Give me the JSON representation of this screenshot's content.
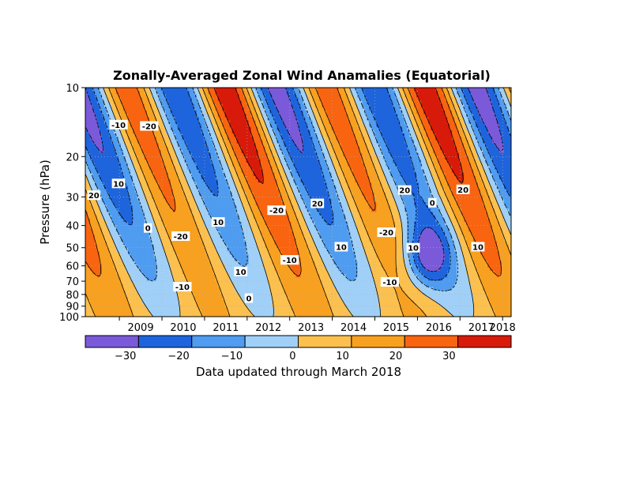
{
  "chart_data": {
    "type": "heatmap",
    "title": "Zonally-Averaged Zonal Wind Anamalies (Equatorial)",
    "ylabel": "Pressure (hPa)",
    "footer": "Data updated through March 2018",
    "y_scale": "log-reversed",
    "ylim": [
      100,
      10
    ],
    "y_ticks": [
      "10",
      "20",
      "30",
      "40",
      "50",
      "60",
      "70",
      "80",
      "90",
      "100"
    ],
    "y_tick_values": [
      10,
      20,
      30,
      40,
      50,
      60,
      70,
      80,
      90,
      100
    ],
    "xlim": [
      2008.2,
      2018.2
    ],
    "x_ticks": [
      "2009",
      "2010",
      "2011",
      "2012",
      "2013",
      "2014",
      "2015",
      "2016",
      "2017",
      "2018"
    ],
    "x_tick_values": [
      2009,
      2010,
      2011,
      2012,
      2013,
      2014,
      2015,
      2016,
      2017,
      2018
    ],
    "grid": true,
    "colorbar": {
      "bounds": [
        -40,
        -30,
        -20,
        -10,
        0,
        10,
        20,
        30,
        40
      ],
      "tick_labels": [
        "-30",
        "-20",
        "-10",
        "0",
        "10",
        "20",
        "30"
      ],
      "tick_values": [
        -30,
        -20,
        -10,
        0,
        10,
        20,
        30
      ],
      "colors": [
        "#7a5ad8",
        "#1e64dc",
        "#4f9cf0",
        "#a0d0f8",
        "#fcc04e",
        "#f8a020",
        "#f86410",
        "#d81a0a"
      ]
    },
    "contour_labels": [
      {
        "text": "-10",
        "t": 2008.98,
        "p": 14.5
      },
      {
        "text": "-20",
        "t": 2009.7,
        "p": 14.7
      },
      {
        "text": "20",
        "t": 2008.4,
        "p": 29.5
      },
      {
        "text": "10",
        "t": 2008.98,
        "p": 26.2
      },
      {
        "text": "0",
        "t": 2009.67,
        "p": 41.0
      },
      {
        "text": "-20",
        "t": 2010.44,
        "p": 44.5
      },
      {
        "text": "-10",
        "t": 2010.48,
        "p": 74.0
      },
      {
        "text": "10",
        "t": 2011.32,
        "p": 38.6
      },
      {
        "text": "10",
        "t": 2011.85,
        "p": 63.5
      },
      {
        "text": "0",
        "t": 2012.04,
        "p": 83.0
      },
      {
        "text": "-20",
        "t": 2012.69,
        "p": 34.3
      },
      {
        "text": "-10",
        "t": 2013.0,
        "p": 56.5
      },
      {
        "text": "20",
        "t": 2013.65,
        "p": 32.0
      },
      {
        "text": "10",
        "t": 2014.21,
        "p": 49.5
      },
      {
        "text": "-20",
        "t": 2015.27,
        "p": 42.8
      },
      {
        "text": "-10",
        "t": 2015.35,
        "p": 70.5
      },
      {
        "text": "20",
        "t": 2015.7,
        "p": 28.0
      },
      {
        "text": "10",
        "t": 2015.9,
        "p": 50.0
      },
      {
        "text": "0",
        "t": 2016.35,
        "p": 31.8
      },
      {
        "text": "20",
        "t": 2017.07,
        "p": 27.8
      },
      {
        "text": "10",
        "t": 2017.42,
        "p": 49.5
      }
    ],
    "field_model": {
      "description_free": true,
      "qbo_period_years": 2.35,
      "phase_year": 2010.9,
      "phase_speed_years_per_decade_log": 1.8,
      "amplitude": 32,
      "disruption_year": 2016.2,
      "disruption_width": 0.55,
      "disruption_pressure_min": 30,
      "disruption_strength": 34
    }
  }
}
